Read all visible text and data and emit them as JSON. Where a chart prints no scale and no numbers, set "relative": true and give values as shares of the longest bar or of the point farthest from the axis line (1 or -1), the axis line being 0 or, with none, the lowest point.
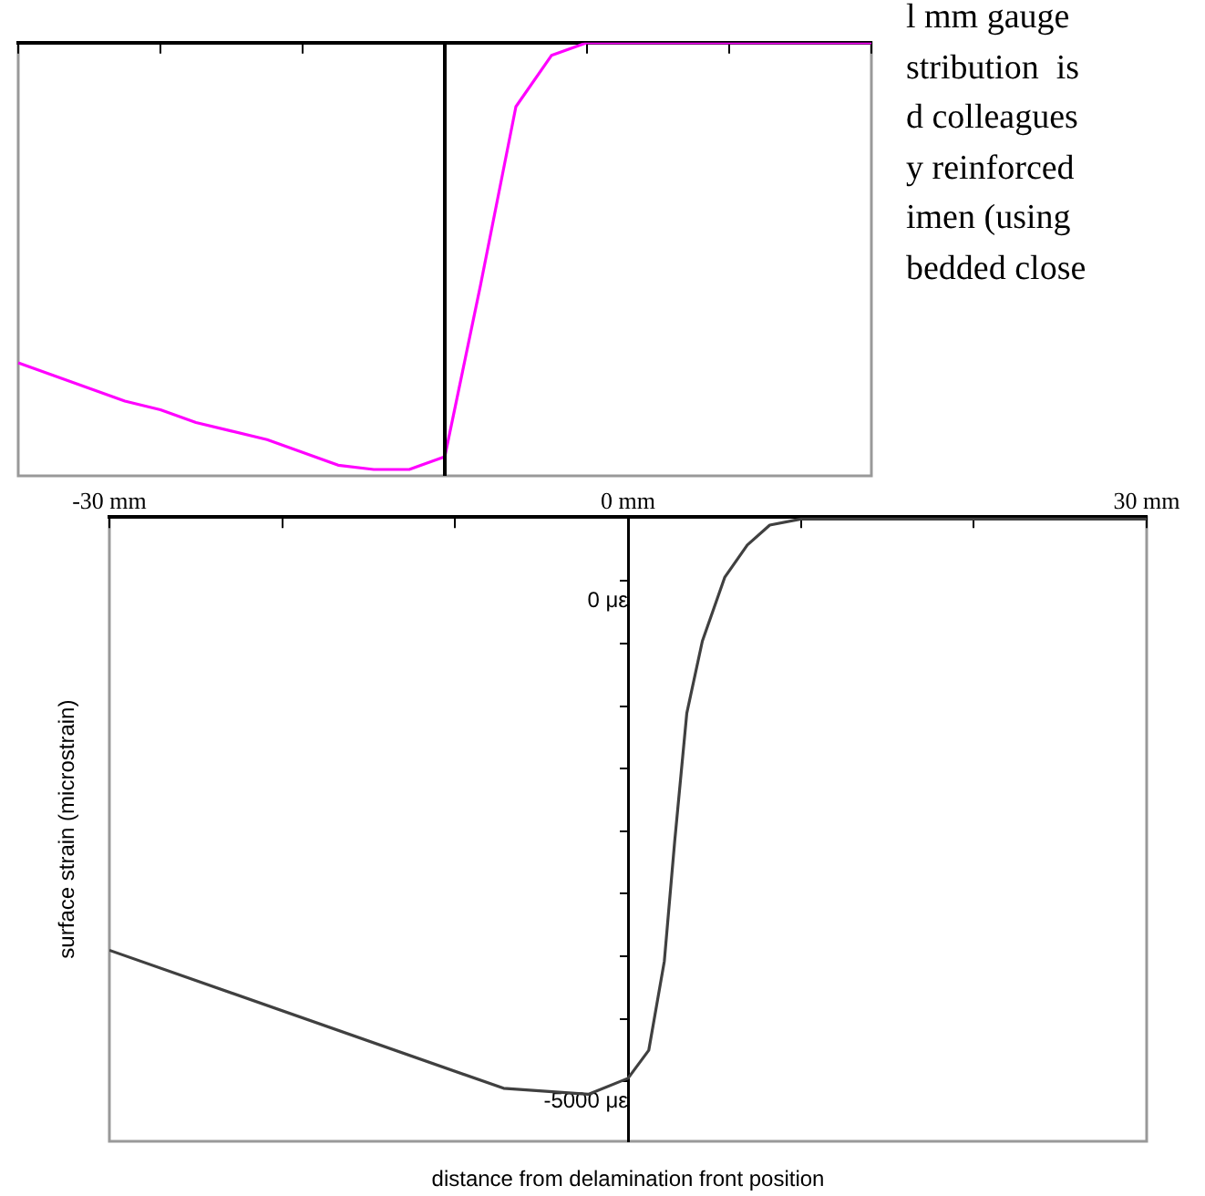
{
  "chart_data": [
    {
      "type": "line",
      "relative": true,
      "categories": [
        null,
        null,
        null,
        null,
        null,
        null,
        null,
        null,
        null,
        null,
        null,
        null,
        null,
        null,
        null,
        null,
        null,
        null,
        null,
        null,
        null,
        null,
        null,
        null,
        null
      ],
      "grid": false,
      "legend": false,
      "marker": "none",
      "series": [
        {
          "color": "#ff00ff",
          "values": [
            -0.75,
            -0.78,
            -0.81,
            -0.84,
            -0.86,
            -0.89,
            -0.91,
            -0.93,
            -0.96,
            -0.99,
            -1,
            -1,
            -0.97,
            -0.57,
            -0.15,
            -0.03,
            0,
            0,
            0,
            0,
            0,
            0,
            0,
            0,
            0
          ]
        }
      ],
      "annotations": [
        "l mm gauge",
        "stribution  is",
        "d colleagues",
        "y reinforced",
        "imen (using",
        "bedded close"
      ]
    },
    {
      "type": "line",
      "xlabel": "distance from delamination front position",
      "ylabel": "surface strain (microstrain)",
      "xlim": [
        -30,
        30
      ],
      "ylim": [
        -5600,
        640
      ],
      "xticks": [
        {
          "value": -30,
          "label": "-30 mm"
        },
        {
          "value": -20,
          "label": null
        },
        {
          "value": -10,
          "label": null
        },
        {
          "value": 0,
          "label": "0 mm"
        },
        {
          "value": 10,
          "label": null
        },
        {
          "value": 20,
          "label": null
        },
        {
          "value": 30,
          "label": "30 mm"
        }
      ],
      "yticks": [
        {
          "value": 0,
          "label": "0 με"
        },
        {
          "value": -625,
          "label": null
        },
        {
          "value": -1250,
          "label": null
        },
        {
          "value": -1875,
          "label": null
        },
        {
          "value": -2500,
          "label": null
        },
        {
          "value": -3125,
          "label": null
        },
        {
          "value": -3750,
          "label": null
        },
        {
          "value": -4375,
          "label": null
        },
        {
          "value": -5000,
          "label": "-5000 με"
        }
      ],
      "grid": false,
      "legend": false,
      "marker": "none",
      "series": [
        {
          "color": "#404040",
          "x": [
            -30,
            -7.2,
            -2.3,
            0,
            1.2,
            2.1,
            2.7,
            3.4,
            4.3,
            5.6,
            6.9,
            8.2,
            10,
            30
          ],
          "values": [
            -3690,
            -5070,
            -5130,
            -4970,
            -4690,
            -3800,
            -2600,
            -1320,
            -600,
            40,
            360,
            560,
            620,
            620
          ]
        }
      ]
    }
  ]
}
